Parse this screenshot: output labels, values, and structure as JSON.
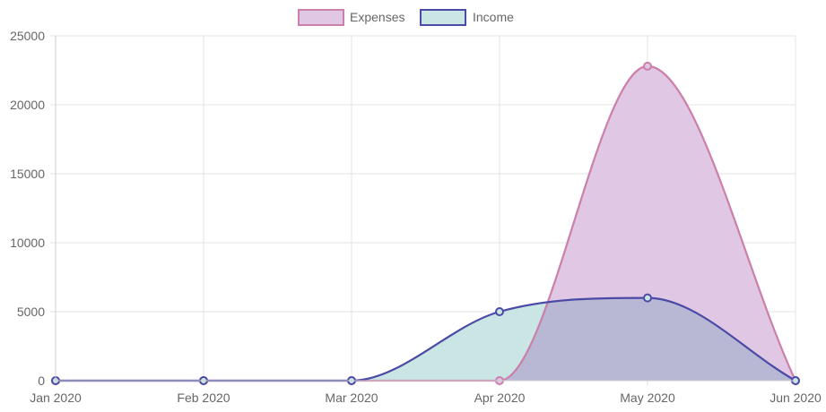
{
  "chart_data": {
    "type": "area",
    "categories": [
      "Jan 2020",
      "Feb 2020",
      "Mar 2020",
      "Apr 2020",
      "May 2020",
      "Jun 2020"
    ],
    "series": [
      {
        "name": "Expenses",
        "values": [
          0,
          0,
          0,
          0,
          22800,
          0
        ],
        "line_color": "#cc7faa",
        "fill_color": "#e0c8e4"
      },
      {
        "name": "Income",
        "values": [
          0,
          0,
          0,
          5000,
          6000,
          0
        ],
        "line_color": "#4b4aa6",
        "fill_color": "#c9e6e5"
      }
    ],
    "y_ticks": [
      "0",
      "5000",
      "10000",
      "15000",
      "20000",
      "25000"
    ],
    "ylim": [
      0,
      25000
    ],
    "grid": true,
    "legend_position": "top-center",
    "overlap_color": "#b8b8d4"
  }
}
